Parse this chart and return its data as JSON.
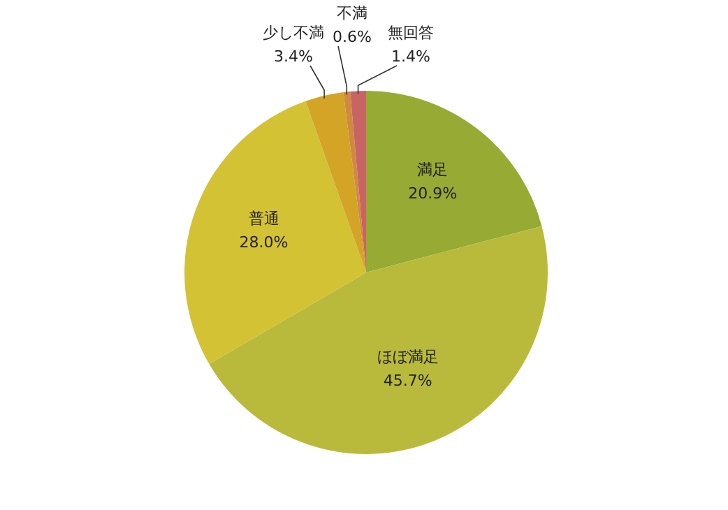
{
  "chart_data": {
    "type": "pie",
    "categories": [
      "満足",
      "ほぼ満足",
      "普通",
      "少し不満",
      "不満",
      "無回答"
    ],
    "values": [
      20.9,
      45.7,
      28.0,
      3.4,
      0.6,
      1.4
    ],
    "colors": [
      "#96aa34",
      "#b9ba3c",
      "#d3c234",
      "#d4a426",
      "#d08a40",
      "#c86464"
    ],
    "value_labels": [
      "20.9%",
      "45.7%",
      "28.0%",
      "3.4%",
      "0.6%",
      "1.4%"
    ]
  }
}
